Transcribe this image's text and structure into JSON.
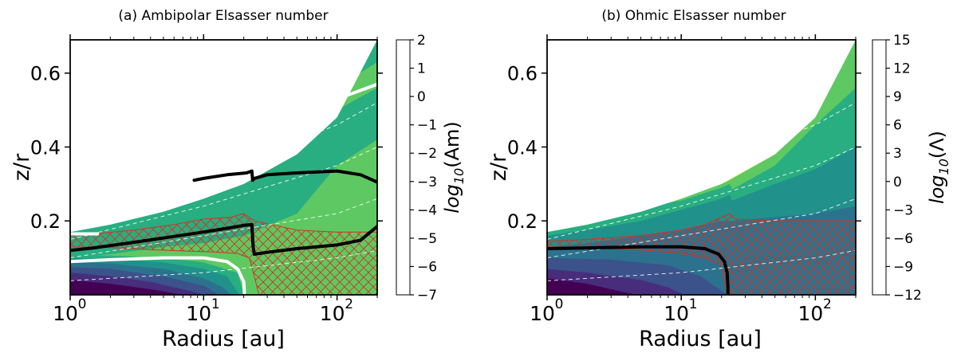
{
  "chart_data": [
    {
      "type": "heatmap",
      "title": "(a) Ambipolar Elsasser number",
      "xlabel": "Radius [au]",
      "ylabel": "z/r",
      "x_scale": "log",
      "xlim": [
        1,
        200
      ],
      "ylim": [
        0,
        0.69
      ],
      "x_ticks": [
        1,
        10,
        100
      ],
      "x_tick_labels": [
        "10",
        "10",
        "10"
      ],
      "x_tick_exponents": [
        "0",
        "1",
        "2"
      ],
      "y_ticks": [
        0.2,
        0.4,
        0.6
      ],
      "y_tick_labels": [
        "0.2",
        "0.4",
        "0.6"
      ],
      "colorbar": {
        "label_prefix": "log",
        "label_sub": "10",
        "label_arg": "(Am)",
        "levels": [
          -7,
          -6,
          -5,
          -4,
          -3,
          -2,
          -1,
          0,
          1,
          2
        ],
        "tick_labels": [
          "−7",
          "−6",
          "−5",
          "−4",
          "−3",
          "−2",
          "−1",
          "0",
          "1",
          "2"
        ],
        "colors": [
          "#440154",
          "#472d7b",
          "#3b528b",
          "#2c728e",
          "#21918c",
          "#28ae80",
          "#5ec962",
          "#addc30",
          "#fde725"
        ]
      },
      "surface": {
        "x": [
          1,
          2,
          5,
          10,
          20,
          50,
          100,
          200
        ],
        "y": [
          0.17,
          0.19,
          0.225,
          0.26,
          0.3,
          0.38,
          0.48,
          0.69
        ]
      },
      "fills": [
        {
          "level": 5,
          "x": [
            1,
            2,
            5,
            10,
            20,
            50,
            100,
            200
          ],
          "y": [
            0.1,
            0.11,
            0.13,
            0.14,
            0.16,
            0.22,
            0.35,
            0.42
          ]
        },
        {
          "level": 6,
          "x": [
            8.5,
            12,
            20,
            50,
            100,
            200
          ],
          "y": [
            0.31,
            0.33,
            0.36,
            0.42,
            0.5,
            0.56
          ]
        },
        {
          "level": 5,
          "x": [
            23,
            30,
            50,
            100,
            200
          ],
          "y": [
            0.4,
            0.43,
            0.48,
            0.56,
            0.63
          ]
        }
      ],
      "inner_region": {
        "bands": [
          {
            "level": 0,
            "x": [
              1,
              2,
              4,
              7
            ],
            "y": [
              0.04,
              0.03,
              0.015,
              0
            ]
          },
          {
            "level": 1,
            "x": [
              1,
              2,
              4,
              8,
              10
            ],
            "y": [
              0.06,
              0.05,
              0.035,
              0.01,
              0
            ]
          },
          {
            "level": 2,
            "x": [
              1,
              2,
              5,
              10,
              13
            ],
            "y": [
              0.075,
              0.07,
              0.05,
              0.025,
              0
            ]
          },
          {
            "level": 3,
            "x": [
              1,
              2,
              5,
              10,
              14,
              16
            ],
            "y": [
              0.09,
              0.085,
              0.07,
              0.045,
              0.02,
              0
            ]
          },
          {
            "level": 4,
            "x": [
              1,
              2,
              5,
              10,
              15,
              18.5
            ],
            "y": [
              0.1,
              0.098,
              0.088,
              0.07,
              0.05,
              0
            ]
          },
          {
            "level": 5,
            "x": [
              1,
              2,
              5,
              10,
              18,
              20
            ],
            "y": [
              0.108,
              0.106,
              0.1,
              0.088,
              0.06,
              0
            ]
          }
        ]
      },
      "hatch_region": {
        "upper": {
          "x": [
            1,
            1.5,
            3,
            6,
            10,
            16,
            20,
            24,
            50,
            100,
            200
          ],
          "y": [
            0.16,
            0.165,
            0.175,
            0.19,
            0.205,
            0.21,
            0.22,
            0.2,
            0.175,
            0.17,
            0.17
          ]
        },
        "lower_left": {
          "x": [
            1,
            2,
            4,
            8,
            12,
            18,
            22
          ],
          "y": [
            0.13,
            0.128,
            0.122,
            0.118,
            0.116,
            0.112,
            0.1
          ]
        },
        "lower_right": {
          "x": [
            24,
            26
          ],
          "y": [
            0.05,
            0
          ]
        }
      },
      "contours": [
        {
          "color": "#000000",
          "width": 4,
          "x": [
            8.5,
            10,
            15,
            21,
            23,
            23.3,
            24,
            30,
            50,
            100,
            150,
            200
          ],
          "y": [
            0.31,
            0.315,
            0.325,
            0.33,
            0.335,
            0.31,
            0.315,
            0.325,
            0.33,
            0.335,
            0.325,
            0.305
          ]
        },
        {
          "color": "#000000",
          "width": 4,
          "x": [
            1,
            1.5,
            3,
            6,
            10,
            15,
            20,
            23,
            23.5,
            24,
            30,
            50,
            100,
            150,
            200
          ],
          "y": [
            0.12,
            0.127,
            0.142,
            0.158,
            0.17,
            0.18,
            0.188,
            0.19,
            0.13,
            0.11,
            0.115,
            0.125,
            0.135,
            0.148,
            0.185
          ]
        },
        {
          "color": "#ffffff",
          "width": 4,
          "x": [
            1,
            2,
            5,
            10,
            15,
            18,
            20,
            20.2
          ],
          "y": [
            0.09,
            0.095,
            0.1,
            0.1,
            0.09,
            0.07,
            0.035,
            0.005
          ]
        },
        {
          "color": "#ffffff",
          "width": 4,
          "x": [
            24,
            30,
            50,
            100,
            200
          ],
          "y": [
            0.41,
            0.44,
            0.48,
            0.53,
            0.57
          ]
        },
        {
          "color": "#ffffff",
          "width": 4,
          "x": [
            1,
            1.6
          ],
          "y": [
            0.165,
            0.165
          ]
        }
      ],
      "dashed_lines": [
        {
          "x": [
            1,
            10,
            100,
            200
          ],
          "y": [
            0.038,
            0.06,
            0.1,
            0.12
          ]
        },
        {
          "x": [
            1,
            10,
            100,
            200
          ],
          "y": [
            0.1,
            0.16,
            0.22,
            0.26
          ]
        },
        {
          "x": [
            1,
            10,
            100,
            200
          ],
          "y": [
            0.15,
            0.24,
            0.35,
            0.4
          ]
        },
        {
          "x": [
            1,
            10,
            100,
            200
          ],
          "y": [
            0.2,
            0.32,
            0.46,
            0.52
          ]
        }
      ]
    },
    {
      "type": "heatmap",
      "title": "(b) Ohmic Elsasser number",
      "xlabel": "Radius [au]",
      "ylabel": "z/r",
      "x_scale": "log",
      "xlim": [
        1,
        200
      ],
      "ylim": [
        0,
        0.69
      ],
      "x_ticks": [
        1,
        10,
        100
      ],
      "x_tick_labels": [
        "10",
        "10",
        "10"
      ],
      "x_tick_exponents": [
        "0",
        "1",
        "2"
      ],
      "y_ticks": [
        0.2,
        0.4,
        0.6
      ],
      "y_tick_labels": [
        "0.2",
        "0.4",
        "0.6"
      ],
      "colorbar": {
        "label_prefix": "log",
        "label_sub": "10",
        "label_arg": "(Λ)",
        "levels": [
          -12,
          -9,
          -6,
          -3,
          0,
          3,
          6,
          9,
          12,
          15
        ],
        "tick_labels": [
          "−12",
          "−9",
          "−6",
          "−3",
          "0",
          "3",
          "6",
          "9",
          "12",
          "15"
        ],
        "colors": [
          "#440154",
          "#472d7b",
          "#3b528b",
          "#2c728e",
          "#21918c",
          "#28ae80",
          "#5ec962",
          "#addc30",
          "#fde725"
        ]
      },
      "surface": {
        "x": [
          1,
          2,
          5,
          10,
          20,
          50,
          100,
          200
        ],
        "y": [
          0.17,
          0.19,
          0.225,
          0.26,
          0.3,
          0.38,
          0.48,
          0.69
        ]
      },
      "fills": [
        {
          "level": 4,
          "x": [
            1,
            2,
            5,
            10,
            15,
            20,
            24,
            50,
            100,
            200
          ],
          "y": [
            0.13,
            0.14,
            0.16,
            0.175,
            0.19,
            0.2,
            0.2,
            0.21,
            0.22,
            0.24
          ]
        },
        {
          "level": 5,
          "x": [
            1,
            2,
            5,
            10,
            20,
            23,
            24,
            50,
            100,
            200
          ],
          "y": [
            0.16,
            0.175,
            0.2,
            0.23,
            0.26,
            0.27,
            0.255,
            0.3,
            0.34,
            0.4
          ]
        },
        {
          "level": 6,
          "x": [
            7,
            10,
            20,
            23,
            24,
            50,
            100,
            200
          ],
          "y": [
            0.245,
            0.255,
            0.29,
            0.3,
            0.285,
            0.35,
            0.46,
            0.56
          ]
        },
        {
          "level": 7,
          "x": [
            20,
            23,
            50,
            100,
            200
          ],
          "y": [
            0.3,
            0.31,
            0.38,
            0.49,
            0.69
          ]
        }
      ],
      "inner_region": {
        "bands": [
          {
            "level": 0,
            "x": [
              1,
              2,
              3,
              4.6
            ],
            "y": [
              0.045,
              0.03,
              0.015,
              0
            ]
          },
          {
            "level": 1,
            "x": [
              1,
              2,
              5,
              8,
              10.5
            ],
            "y": [
              0.07,
              0.06,
              0.04,
              0.02,
              0
            ]
          },
          {
            "level": 2,
            "x": [
              1,
              3,
              8,
              14,
              22
            ],
            "y": [
              0.1,
              0.095,
              0.08,
              0.05,
              0
            ]
          }
        ]
      },
      "hatch_region": {
        "upper": {
          "x": [
            1,
            2,
            5,
            10,
            15,
            20,
            23,
            25,
            50,
            100,
            200
          ],
          "y": [
            0.145,
            0.15,
            0.16,
            0.175,
            0.19,
            0.21,
            0.22,
            0.205,
            0.2,
            0.2,
            0.2
          ]
        },
        "lower_left": {
          "x": [
            1,
            2,
            5,
            10,
            15,
            20,
            22
          ],
          "y": [
            0.13,
            0.128,
            0.122,
            0.112,
            0.1,
            0.08,
            0.0
          ]
        },
        "lower_right": {
          "x": [
            22,
            22
          ],
          "y": [
            0.08,
            0
          ]
        }
      },
      "contours": [
        {
          "color": "#000000",
          "width": 4,
          "x": [
            1,
            2,
            5,
            10,
            15,
            19,
            21,
            22,
            22.3,
            22.3
          ],
          "y": [
            0.125,
            0.127,
            0.13,
            0.13,
            0.125,
            0.11,
            0.09,
            0.06,
            0.02,
            0
          ]
        }
      ],
      "dashed_lines": [
        {
          "x": [
            1,
            10,
            100,
            200
          ],
          "y": [
            0.038,
            0.06,
            0.1,
            0.12
          ]
        },
        {
          "x": [
            1,
            10,
            100,
            200
          ],
          "y": [
            0.1,
            0.16,
            0.22,
            0.26
          ]
        },
        {
          "x": [
            1,
            10,
            100,
            200
          ],
          "y": [
            0.15,
            0.24,
            0.35,
            0.4
          ]
        },
        {
          "x": [
            1,
            10,
            100,
            200
          ],
          "y": [
            0.2,
            0.32,
            0.46,
            0.52
          ]
        }
      ]
    }
  ]
}
